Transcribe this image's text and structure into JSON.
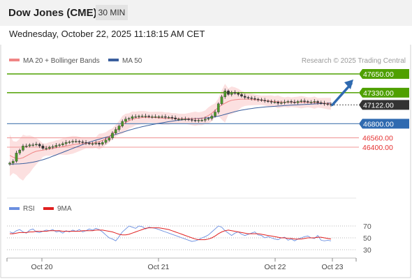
{
  "header": {
    "title": "Dow Jones (CME)",
    "timeframe": "30 MIN"
  },
  "date_line": "Wednesday, October 22, 2025 11:18:15 AM CET",
  "legend": {
    "ma20": "MA 20 + Bollinger Bands",
    "ma50": "MA 50",
    "credit": "Research © 2025 Trading Central",
    "rsi": "RSI",
    "rsi_ma": "9MA"
  },
  "colors": {
    "green": "#4fa000",
    "blue_level": "#5a86b8",
    "red_level": "#e53030",
    "current": "#333333",
    "arrow": "#2f6ab0",
    "ma20": "#f08585",
    "ma50": "#3b5f9e",
    "band_fill": "#fbdada",
    "rsi": "#6b8fe0",
    "rsi_ma": "#e02020"
  },
  "chart_data": [
    {
      "type": "candlestick",
      "title": "Dow Jones (CME) 30 MIN",
      "x_ticks": [
        "Oct 20",
        "Oct 21",
        "Oct 22",
        "Oct 23"
      ],
      "levels": [
        {
          "value": 47650.0,
          "label": "47650.00",
          "kind": "resistance"
        },
        {
          "value": 47330.0,
          "label": "47330.00",
          "kind": "resistance"
        },
        {
          "value": 47122.0,
          "label": "47122.00",
          "kind": "current"
        },
        {
          "value": 46800.0,
          "label": "46800.00",
          "kind": "pivot"
        },
        {
          "value": 46560.0,
          "label": "46560.00",
          "kind": "support"
        },
        {
          "value": 46400.0,
          "label": "46400.00",
          "kind": "support"
        }
      ],
      "arrow_target": 47650.0,
      "series": [
        {
          "name": "Price",
          "values": [
            46130,
            46160,
            46300,
            46350,
            46420,
            46420,
            46440,
            46440,
            46450,
            46420,
            46380,
            46380,
            46400,
            46410,
            46430,
            46440,
            46460,
            46480,
            46490,
            46500,
            46500,
            46490,
            46480,
            46470,
            46460,
            46460,
            46470,
            46450,
            46480,
            46520,
            46560,
            46640,
            46700,
            46760,
            46840,
            46880,
            46890,
            46920,
            46920,
            46930,
            46930,
            46930,
            46920,
            46920,
            46920,
            46920,
            46920,
            46910,
            46910,
            46900,
            46880,
            46880,
            46880,
            46880,
            46870,
            46860,
            46850,
            46860,
            46860,
            46880,
            46890,
            46930,
            47000,
            47140,
            47260,
            47360,
            47300,
            47330,
            47320,
            47300,
            47270,
            47250,
            47240,
            47230,
            47220,
            47210,
            47200,
            47190,
            47180,
            47170,
            47170,
            47150,
            47160,
            47170,
            47180,
            47170,
            47160,
            47180,
            47190,
            47180,
            47170,
            47170,
            47180,
            47160,
            47150,
            47140,
            47130,
            47122
          ]
        },
        {
          "name": "MA 20",
          "values": [
            46260,
            46230,
            46210,
            46205,
            46220,
            46250,
            46280,
            46310,
            46330,
            46340,
            46350,
            46360,
            46370,
            46380,
            46390,
            46400,
            46410,
            46420,
            46430,
            46440,
            46450,
            46455,
            46460,
            46465,
            46470,
            46470,
            46480,
            46495,
            46515,
            46545,
            46585,
            46630,
            46680,
            46730,
            46780,
            46820,
            46850,
            46875,
            46890,
            46900,
            46905,
            46910,
            46910,
            46910,
            46905,
            46900,
            46895,
            46890,
            46890,
            46890,
            46890,
            46885,
            46885,
            46885,
            46885,
            46885,
            46885,
            46885,
            46890,
            46910,
            46940,
            46980,
            47030,
            47080,
            47120,
            47150,
            47180,
            47200,
            47210,
            47215,
            47220,
            47220,
            47218,
            47214,
            47210,
            47205,
            47200,
            47195,
            47190,
            47185,
            47180,
            47175,
            47170,
            47168,
            47168,
            47168,
            47168,
            47168,
            47168,
            47167,
            47165,
            47162,
            47160,
            47158,
            47155,
            47150,
            47145,
            47140
          ]
        },
        {
          "name": "MA 50",
          "values": [
            46110,
            46112,
            46114,
            46116,
            46120,
            46126,
            46134,
            46144,
            46156,
            46170,
            46186,
            46204,
            46224,
            46246,
            46268,
            46290,
            46312,
            46334,
            46356,
            46378,
            46400,
            46422,
            46444,
            46466,
            46486,
            46504,
            46520,
            46536,
            46552,
            46568,
            46584,
            46600,
            46618,
            46636,
            46654,
            46672,
            46690,
            46706,
            46722,
            46736,
            46750,
            46762,
            46774,
            46786,
            46796,
            46806,
            46816,
            46826,
            46836,
            46844,
            46852,
            46860,
            46866,
            46872,
            46878,
            46884,
            46888,
            46892,
            46896,
            46900,
            46904,
            46910,
            46918,
            46930,
            46944,
            46960,
            46976,
            46992,
            47006,
            47020,
            47032,
            47042,
            47052,
            47060,
            47068,
            47074,
            47080,
            47086,
            47090,
            47094,
            47098,
            47102,
            47106,
            47110,
            47114,
            47117,
            47120,
            47123,
            47126,
            47129,
            47132,
            47135,
            47138,
            47141,
            47144,
            47147,
            47150,
            47152
          ]
        }
      ]
    },
    {
      "type": "line",
      "title": "RSI",
      "ylim": [
        30,
        70
      ],
      "y_ticks": [
        "70",
        "50",
        "30"
      ],
      "series": [
        {
          "name": "RSI",
          "values": [
            60,
            58,
            62,
            64,
            60,
            58,
            63,
            65,
            60,
            59,
            61,
            63,
            62,
            64,
            60,
            61,
            58,
            62,
            60,
            63,
            61,
            64,
            60,
            62,
            65,
            63,
            66,
            64,
            60,
            55,
            50,
            48,
            45,
            52,
            60,
            65,
            70,
            68,
            66,
            70,
            69,
            65,
            68,
            67,
            66,
            64,
            62,
            60,
            58,
            56,
            54,
            52,
            50,
            48,
            46,
            44,
            45,
            47,
            50,
            52,
            55,
            60,
            65,
            70,
            68,
            62,
            58,
            54,
            58,
            60,
            56,
            54,
            56,
            58,
            60,
            55,
            54,
            50,
            52,
            50,
            48,
            47,
            50,
            51,
            46,
            48,
            45,
            48,
            50,
            52,
            53,
            50,
            49,
            54,
            46,
            45,
            46,
            45
          ]
        },
        {
          "name": "9MA",
          "values": [
            57,
            57,
            58,
            59,
            59,
            59,
            60,
            60,
            61,
            61,
            61,
            61,
            62,
            62,
            62,
            62,
            61,
            61,
            61,
            61,
            61,
            61,
            62,
            62,
            62,
            62,
            63,
            63,
            63,
            62,
            61,
            60,
            58,
            56,
            55,
            55,
            56,
            58,
            60,
            62,
            64,
            66,
            67,
            67,
            67,
            67,
            66,
            65,
            64,
            62,
            60,
            58,
            56,
            54,
            52,
            50,
            48,
            47,
            47,
            47,
            48,
            50,
            53,
            57,
            60,
            62,
            63,
            62,
            61,
            60,
            59,
            58,
            57,
            57,
            57,
            57,
            56,
            55,
            54,
            53,
            52,
            51,
            50,
            50,
            49,
            49,
            48,
            48,
            48,
            49,
            50,
            50,
            50,
            51,
            51,
            50,
            49,
            48
          ]
        }
      ]
    }
  ]
}
